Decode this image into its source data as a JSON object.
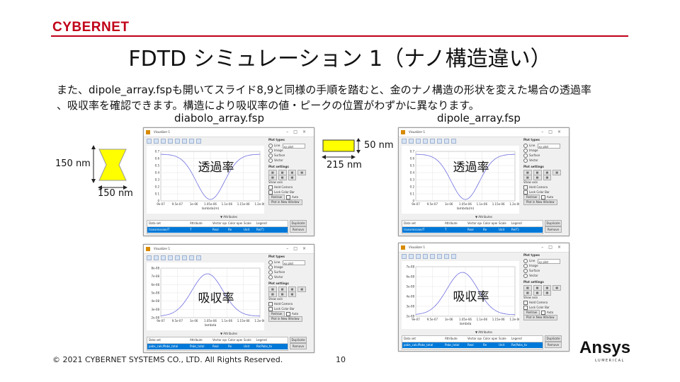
{
  "brand": "CYBERNET",
  "title": "FDTD シミュレーション 1（ナノ構造違い）",
  "intro": [
    "また、dipole_array.fspも開いてスライド8,9と同様の手順を踏むと、金のナノ構造の形状を変えた場合の透過率",
    "、吸収率を確認できます。構造により吸収率の値・ピークの位置がわずかに異なります。"
  ],
  "left_caption": "diabolo_array.fsp",
  "right_caption": "dipole_array.fsp",
  "diabolo_dims": {
    "height": "150 nm",
    "width": "150 nm"
  },
  "dipole_dims": {
    "height": "50 nm",
    "width": "215 nm"
  },
  "colors": {
    "brand_red": "#c00018",
    "shape_fill": "#ffff00",
    "shape_stroke": "#999999",
    "curve": "#7070e0",
    "selection": "#0078d7"
  },
  "visualizer": {
    "window_title": "Visualizer 1",
    "window_controls": "–□×",
    "plot_types_label": "Plot types",
    "plot_type_options": [
      "Line",
      "Image",
      "Surface",
      "Vector"
    ],
    "plot_type_selected": "xy plot",
    "plot_settings_label": "Plot settings",
    "show_axis": "Show axis",
    "hold_camera": "Hold Camera",
    "lock_color_bar": "Lock Color Bar",
    "auto": "Auto",
    "redraw": "Redraw",
    "plot_in_new_window": "Plot in New Window",
    "attributes": "▼ Attributes",
    "table_headers": [
      "Data set",
      "Attribute",
      "Vector operation",
      "Color operation",
      "Scale",
      "Legend"
    ],
    "duplicate": "Duplicate",
    "remove": "Remove"
  },
  "windows": [
    {
      "label": "透過率",
      "xlabel": "lambda(m)",
      "xticks": [
        "9e-07",
        "9.5e-07",
        "1e-06",
        "1.05e-06",
        "1.1e-06",
        "1.15e-06",
        "1.2e-06"
      ],
      "yticks": [
        "0.7",
        "0.6",
        "0.5",
        "0.4",
        "0.3",
        "0.2",
        "0.1",
        "0"
      ],
      "row": [
        "transmission/T",
        "T",
        "Real",
        "Re",
        "Unit",
        "Re(T)"
      ]
    },
    {
      "label": "透過率",
      "xlabel": "lambda(m)",
      "xticks": [
        "9e-07",
        "9.5e-07",
        "1e-06",
        "1.05e-06",
        "1.1e-06",
        "1.15e-06",
        "1.2e-06"
      ],
      "yticks": [
        "0.7",
        "0.6",
        "0.5",
        "0.4",
        "0.3",
        "0.2",
        "0.1",
        "0"
      ],
      "row": [
        "transmission/T",
        "T",
        "Real",
        "Re",
        "Unit",
        "Re(T)"
      ]
    },
    {
      "label": "吸収率",
      "xlabel": "lambda",
      "xticks": [
        "9e-07",
        "9.5e-07",
        "1e-06",
        "1.05e-06",
        "1.1e-06",
        "1.15e-06",
        "1.2e-06"
      ],
      "yticks": [
        "8e-08",
        "7e-08",
        "6e-08",
        "5e-08",
        "4e-08",
        "3e-08",
        "2e-08"
      ],
      "row": [
        "pabs_calc/Pabs_total",
        "Pabs_total",
        "Real",
        "Re",
        "Unit",
        "Re(Pabs_total)"
      ]
    },
    {
      "label": "吸収率",
      "xlabel": "lambda",
      "xticks": [
        "9e-07",
        "9.5e-07",
        "1e-06",
        "1.05e-06",
        "1.1e-06",
        "1.15e-06",
        "1.2e-06"
      ],
      "yticks": [
        "7e-08",
        "6e-08",
        "5e-08",
        "4e-08",
        "3e-08",
        "2e-08"
      ],
      "row": [
        "pabs_calc/Pabs_total",
        "Pabs_total",
        "Real",
        "Re",
        "Unit",
        "Re(Pabs_total)"
      ]
    }
  ],
  "footer": "© 2021 CYBERNET SYSTEMS CO., LTD. All Rights Reserved.",
  "page_number": "10",
  "ansys_logo": "Ansys",
  "ansys_sub": "LUMERICAL"
}
